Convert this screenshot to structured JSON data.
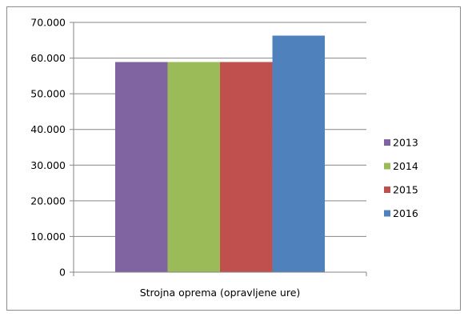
{
  "chart_data": {
    "type": "bar",
    "categories": [
      "Strojna oprema (opravljene ure)"
    ],
    "series": [
      {
        "name": "2013",
        "values": [
          58900
        ],
        "color": "#8064a2"
      },
      {
        "name": "2014",
        "values": [
          58900
        ],
        "color": "#9bbb59"
      },
      {
        "name": "2015",
        "values": [
          58900
        ],
        "color": "#c0504d"
      },
      {
        "name": "2016",
        "values": [
          66300
        ],
        "color": "#4f81bd"
      }
    ],
    "title": "",
    "xlabel": "",
    "ylabel": "",
    "ylim": [
      0,
      70000
    ],
    "yticks": [
      0,
      10000,
      20000,
      30000,
      40000,
      50000,
      60000,
      70000
    ],
    "ytick_labels": [
      "0",
      "10.000",
      "20.000",
      "30.000",
      "40.000",
      "50.000",
      "60.000",
      "70.000"
    ],
    "grid": "horizontal",
    "legend_position": "right",
    "gridline_color": "#868686",
    "axis_color": "#868686"
  }
}
